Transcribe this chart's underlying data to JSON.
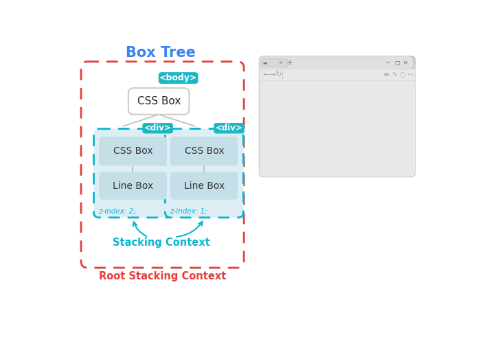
{
  "bg_color": "#ffffff",
  "title_boxtree": "Box Tree",
  "title_boxtree_color": "#3b82f6",
  "title_root": "Root Stacking Context",
  "title_root_color": "#e53e3e",
  "title_stacking": "Stacking Context",
  "title_stacking_color": "#06b6d4",
  "teal_color": "#1ab8c4",
  "light_blue_box": "#c5dfe8",
  "lighter_blue_box": "#ddeef5",
  "white_box": "#ffffff",
  "gray_line": "#aaaaaa",
  "body_label": "<body>",
  "div_label": "<div>",
  "css_box_label": "CSS Box",
  "line_box_label": "Line Box",
  "z_index_left": "z-index: 2;",
  "z_index_right": "z-index: 1;",
  "z_index_color": "#06b6d4",
  "root_border_color": "#e53e3e",
  "stacking_border_color": "#06b6d4"
}
